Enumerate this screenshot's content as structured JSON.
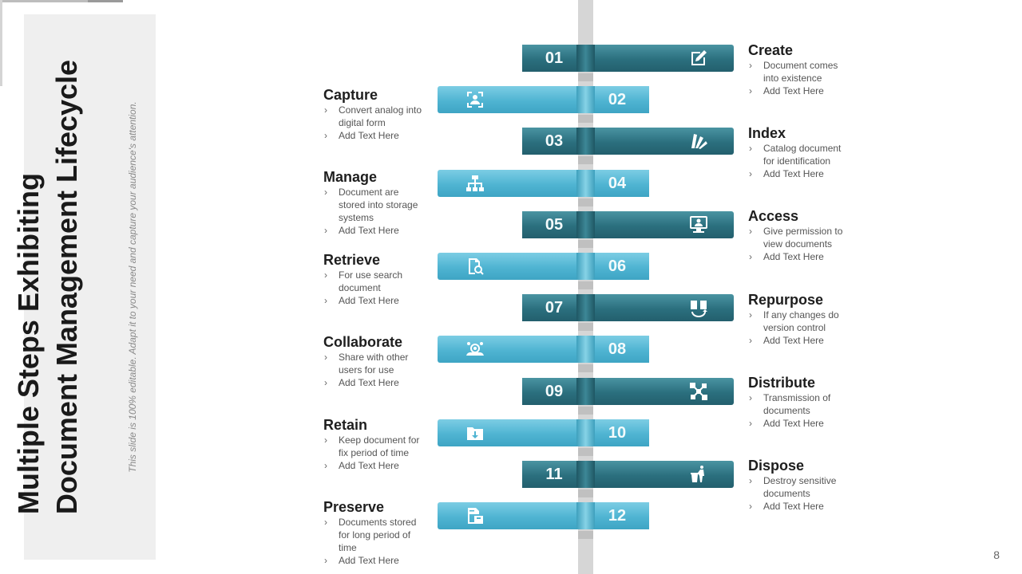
{
  "title_lines": [
    "Multiple Steps Exhibiting",
    "Document Management Lifecycle"
  ],
  "subtitle": "This slide is 100% editable. Adapt it to your need and capture your audience's attention.",
  "page_number": "8",
  "steps": [
    {
      "num": "01",
      "side": "right",
      "icon": "edit-document-icon",
      "heading": "Create",
      "bullets": [
        "Document comes into existence",
        "Add Text Here"
      ]
    },
    {
      "num": "02",
      "side": "left",
      "icon": "scan-person-icon",
      "heading": "Capture",
      "bullets": [
        "Convert analog into digital form",
        "Add Text Here"
      ]
    },
    {
      "num": "03",
      "side": "right",
      "icon": "color-swatch-icon",
      "heading": "Index",
      "bullets": [
        "Catalog document for identification",
        "Add Text Here"
      ]
    },
    {
      "num": "04",
      "side": "left",
      "icon": "hierarchy-icon",
      "heading": "Manage",
      "bullets": [
        "Document are stored into storage systems",
        "Add Text Here"
      ]
    },
    {
      "num": "05",
      "side": "right",
      "icon": "computer-user-icon",
      "heading": "Access",
      "bullets": [
        "Give permission to view documents",
        "Add Text Here"
      ]
    },
    {
      "num": "06",
      "side": "left",
      "icon": "document-search-icon",
      "heading": "Retrieve",
      "bullets": [
        "For use search document",
        "Add Text Here"
      ]
    },
    {
      "num": "07",
      "side": "right",
      "icon": "document-sync-icon",
      "heading": "Repurpose",
      "bullets": [
        "If any changes do version control",
        "Add Text Here"
      ]
    },
    {
      "num": "08",
      "side": "left",
      "icon": "team-gear-icon",
      "heading": "Collaborate",
      "bullets": [
        "Share with other users for use",
        "Add Text Here"
      ]
    },
    {
      "num": "09",
      "side": "right",
      "icon": "distribution-network-icon",
      "heading": "Distribute",
      "bullets": [
        "Transmission of documents",
        "Add Text Here"
      ]
    },
    {
      "num": "10",
      "side": "left",
      "icon": "folder-download-icon",
      "heading": "Retain",
      "bullets": [
        "Keep document for fix period of time",
        "Add Text Here"
      ]
    },
    {
      "num": "11",
      "side": "right",
      "icon": "trash-person-icon",
      "heading": "Dispose",
      "bullets": [
        "Destroy sensitive documents",
        "Add Text Here"
      ]
    },
    {
      "num": "12",
      "side": "left",
      "icon": "archive-box-icon",
      "heading": "Preserve",
      "bullets": [
        "Documents stored for long period of time",
        "Add Text Here"
      ]
    }
  ]
}
